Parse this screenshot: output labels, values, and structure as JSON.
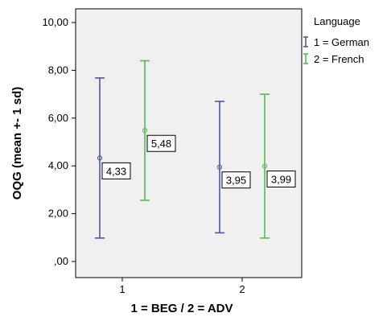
{
  "chart_data": {
    "type": "errorbar",
    "xlabel": "1 = BEG / 2 = ADV",
    "ylabel": "OQG (mean +- 1 sd)",
    "categories": [
      "1",
      "2"
    ],
    "y_ticks": [
      ",00",
      "2,00",
      "4,00",
      "6,00",
      "8,00",
      "10,00"
    ],
    "ylim": [
      0,
      10
    ],
    "legend": {
      "title": "Language",
      "placement": "right"
    },
    "series": [
      {
        "name": "1 = German",
        "color": "#4a58a8",
        "points": [
          {
            "category": "1",
            "mean": 4.33,
            "low": 0.98,
            "high": 7.68,
            "label": "4,33"
          },
          {
            "category": "2",
            "mean": 3.95,
            "low": 1.2,
            "high": 6.7,
            "label": "3,95"
          }
        ]
      },
      {
        "name": "2 = French",
        "color": "#4fbf4f",
        "points": [
          {
            "category": "1",
            "mean": 5.48,
            "low": 2.56,
            "high": 8.4,
            "label": "5,48"
          },
          {
            "category": "2",
            "mean": 3.99,
            "low": 0.98,
            "high": 7.0,
            "label": "3,99"
          }
        ]
      }
    ]
  }
}
